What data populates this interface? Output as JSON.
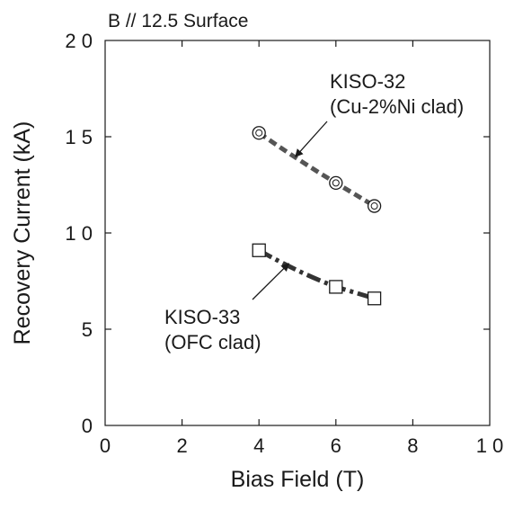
{
  "chart_data": {
    "type": "scatter",
    "title": "B // 12.5 Surface",
    "xlabel": "Bias Field (T)",
    "ylabel": "Recovery Current (kA)",
    "xlim": [
      0,
      10
    ],
    "ylim": [
      0,
      20
    ],
    "x_ticks": [
      "0",
      "2",
      "4",
      "6",
      "8",
      "1 0"
    ],
    "y_ticks": [
      "0",
      "5",
      "1 0",
      "1 5",
      "2 0"
    ],
    "grid": false,
    "series": [
      {
        "name": "KISO-32",
        "marker": "circle",
        "x": [
          4,
          6,
          7
        ],
        "y": [
          15.2,
          12.6,
          11.4
        ],
        "fit_line": "dashed",
        "color": "#555555"
      },
      {
        "name": "KISO-33",
        "marker": "square",
        "x": [
          4,
          6,
          7
        ],
        "y": [
          9.1,
          7.2,
          6.6
        ],
        "fit_line": "dash-dot",
        "color": "#333333"
      }
    ],
    "annotations": [
      {
        "line1": "KISO-32",
        "line2": "(Cu-2%Ni clad)",
        "points_to": {
          "x": 4.9,
          "y": 14.1
        }
      },
      {
        "line1": "KISO-33",
        "line2": "(OFC clad)",
        "points_to": {
          "x": 4.8,
          "y": 8.6
        }
      }
    ]
  }
}
